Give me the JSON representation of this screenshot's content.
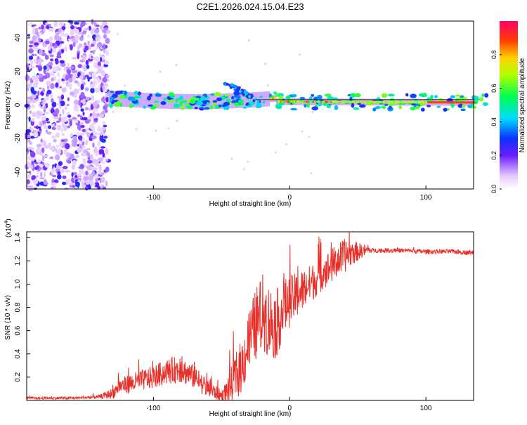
{
  "title": "C2E1.2026.024.15.04.E23",
  "chart_data": [
    {
      "type": "heatmap",
      "xlabel": "Height of straight line (km)",
      "ylabel": "Frequency (Hz)",
      "xlim": [
        -193,
        135
      ],
      "ylim": [
        -50,
        50
      ],
      "xticks": [
        -100,
        0,
        100
      ],
      "xtick_labels": [
        "-100",
        "0",
        "100"
      ],
      "yticks": [
        -40,
        -20,
        0,
        20,
        40
      ],
      "ytick_labels": [
        "-40",
        "-20",
        "0",
        "20",
        "40"
      ],
      "colorbar": {
        "label": "Normalized spectral amplitude",
        "range": [
          0,
          1
        ],
        "ticks": [
          0.0,
          0.2,
          0.4,
          0.6,
          0.8
        ],
        "tick_labels": [
          "0.0",
          "0.2",
          "0.4",
          "0.6",
          "0.8"
        ]
      },
      "features": [
        {
          "name": "noise region",
          "x_range": [
            -193,
            -133
          ],
          "freq_range": [
            -50,
            50
          ],
          "amplitude": 0.15
        },
        {
          "name": "signal band",
          "x_range": [
            -133,
            135
          ],
          "center_freq_start": 4,
          "center_freq_end": 1.5
        }
      ]
    },
    {
      "type": "line",
      "xlabel": "Height of straight line (km)",
      "ylabel": "SNR (10 * v/v)",
      "y_exponent_label": "(x10",
      "y_exponent_power": "4",
      "y_exponent_close": ")",
      "xlim": [
        -193,
        135
      ],
      "ylim": [
        0,
        1.45
      ],
      "xticks": [
        -100,
        0,
        100
      ],
      "xtick_labels": [
        "-100",
        "0",
        "100"
      ],
      "yticks": [
        0.2,
        0.4,
        0.6,
        0.8,
        1.0,
        1.2,
        1.4
      ],
      "ytick_labels": [
        "0.2",
        "0.4",
        "0.6",
        "0.8",
        "1.0",
        "1.2",
        "1.4"
      ],
      "series": [
        {
          "name": "SNR",
          "color": "#e8302a",
          "envelope": {
            "x": [
              -193,
              -160,
              -140,
              -130,
              -125,
              -115,
              -100,
              -90,
              -80,
              -70,
              -60,
              -50,
              -45,
              -40,
              -35,
              -30,
              -25,
              -20,
              -15,
              -10,
              -5,
              0,
              5,
              10,
              15,
              20,
              25,
              30,
              35,
              40,
              45,
              50,
              55,
              60,
              80,
              100,
              120,
              135
            ],
            "y": [
              0.02,
              0.02,
              0.03,
              0.06,
              0.12,
              0.15,
              0.2,
              0.25,
              0.27,
              0.2,
              0.1,
              0.04,
              0.08,
              0.2,
              0.3,
              0.5,
              0.65,
              0.75,
              0.68,
              0.65,
              0.78,
              0.85,
              0.9,
              0.95,
              1.0,
              1.05,
              1.1,
              1.15,
              1.2,
              1.24,
              1.27,
              1.28,
              1.29,
              1.29,
              1.29,
              1.28,
              1.28,
              1.27
            ]
          },
          "noise_amplitude": {
            "x": [
              -193,
              -140,
              -120,
              -80,
              -60,
              -50,
              -40,
              -20,
              -10,
              0,
              20,
              40,
              50,
              60,
              135
            ],
            "y": [
              0.01,
              0.015,
              0.08,
              0.12,
              0.08,
              0.05,
              0.2,
              0.35,
              0.3,
              0.22,
              0.15,
              0.15,
              0.08,
              0.02,
              0.02
            ]
          }
        }
      ]
    }
  ]
}
